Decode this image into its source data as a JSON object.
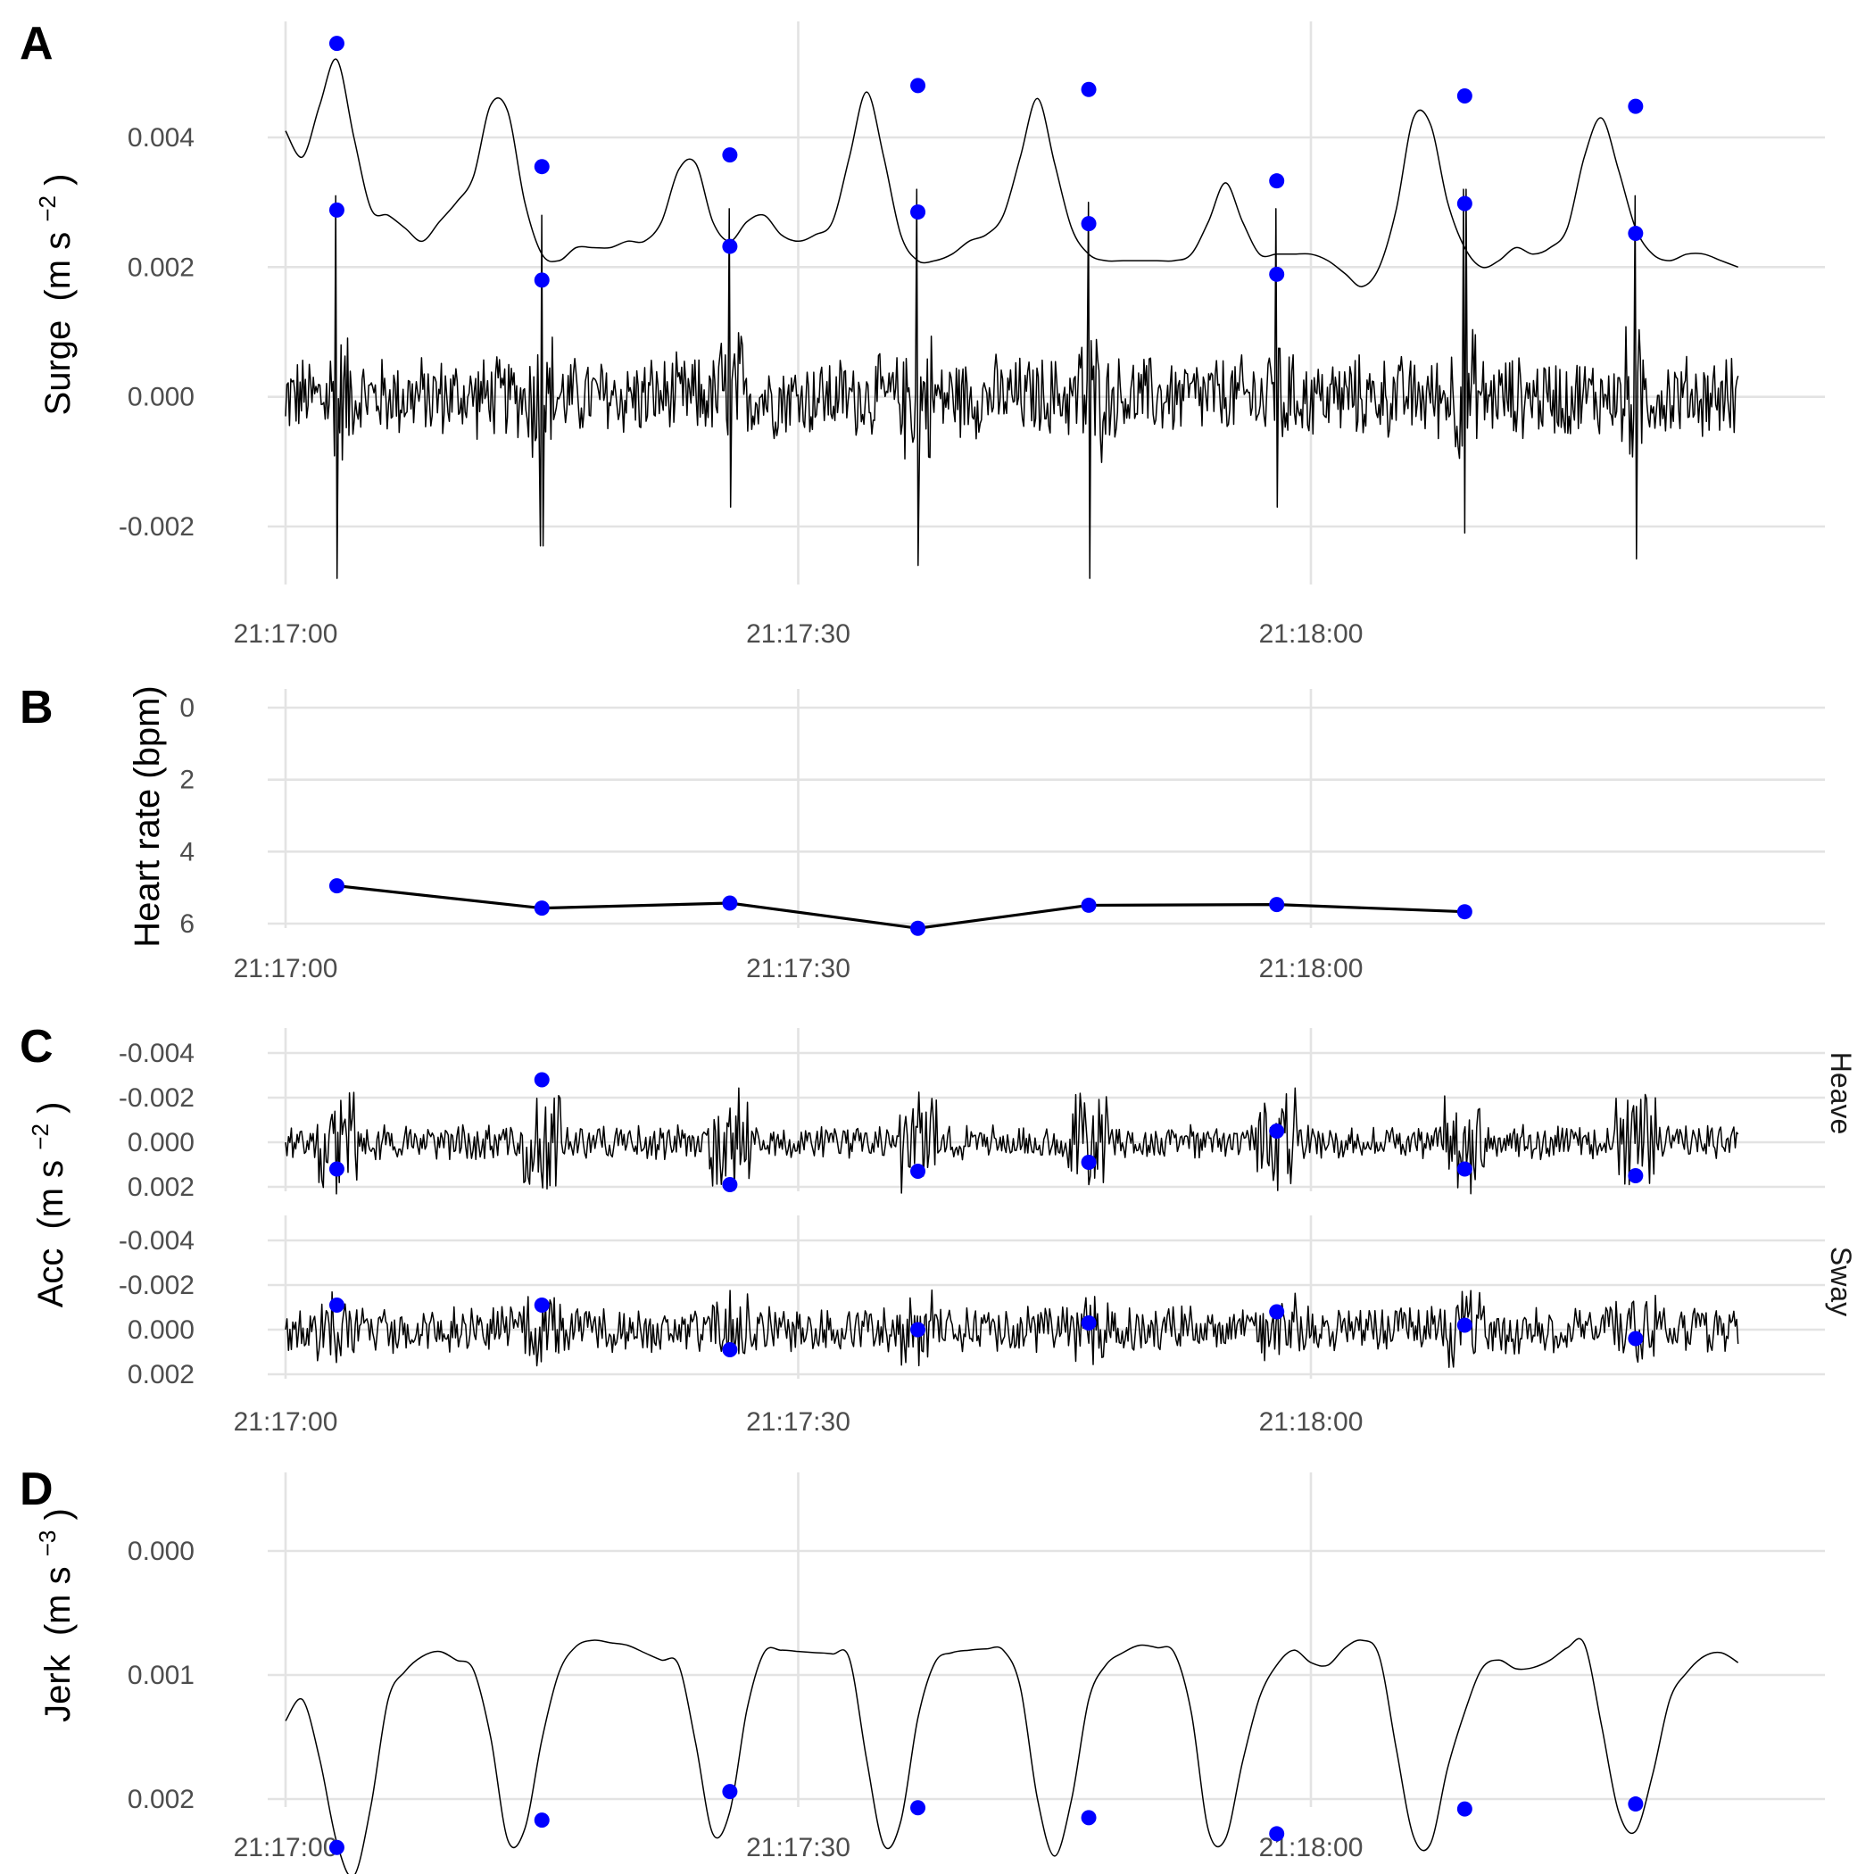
{
  "colors": {
    "marker": "#0000ff",
    "line": "#000000",
    "grid": "#e3e3e3",
    "tick_text": "#4d4d4d"
  },
  "chart_data": [
    {
      "panel": "A",
      "type": "line",
      "ylabel": "Surge",
      "ylabel_unit": "(m s",
      "ylabel_exp": "−2",
      "x_ticks": [
        "21:17:00",
        "21:17:30",
        "21:18:00"
      ],
      "x_range_seconds": [
        0,
        85
      ],
      "y_ticks": [
        "-0.002",
        "0.000",
        "0.002",
        "0.004"
      ],
      "ylim": [
        -0.0028,
        0.0055
      ],
      "series": [
        {
          "style": "envelope, dashed around detected beats",
          "x": [
            0,
            1,
            2,
            3,
            4,
            5,
            6,
            7,
            8,
            9,
            10,
            11,
            12,
            13,
            14,
            15,
            16,
            17,
            18,
            19,
            20,
            21,
            22,
            23,
            24,
            25,
            26,
            27,
            28,
            29,
            30,
            31,
            32,
            33,
            34,
            35,
            36,
            37,
            38,
            39,
            40,
            41,
            42,
            43,
            44,
            45,
            46,
            47,
            48,
            49,
            50,
            51,
            52,
            53,
            54,
            55,
            56,
            57,
            58,
            59,
            60,
            61,
            62,
            63,
            64,
            65,
            66,
            67,
            68,
            69,
            70,
            71,
            72,
            73,
            74,
            75,
            76,
            77,
            78,
            79,
            80,
            81,
            82,
            83,
            84,
            85
          ],
          "y": [
            0.0041,
            0.0037,
            0.0045,
            0.0052,
            0.004,
            0.0029,
            0.0028,
            0.0026,
            0.0024,
            0.0027,
            0.003,
            0.0034,
            0.0045,
            0.0044,
            0.003,
            0.0022,
            0.0021,
            0.0023,
            0.0023,
            0.0023,
            0.0024,
            0.0024,
            0.0027,
            0.0035,
            0.0036,
            0.0027,
            0.0024,
            0.0027,
            0.0028,
            0.0025,
            0.0024,
            0.0025,
            0.0027,
            0.0037,
            0.0047,
            0.0037,
            0.0025,
            0.0021,
            0.0021,
            0.0022,
            0.0024,
            0.0025,
            0.0028,
            0.0037,
            0.0046,
            0.0036,
            0.0026,
            0.0022,
            0.0021,
            0.0021,
            0.0021,
            0.0021,
            0.0021,
            0.0022,
            0.0027,
            0.0033,
            0.0027,
            0.0022,
            0.0022,
            0.0022,
            0.0022,
            0.0021,
            0.0019,
            0.0017,
            0.002,
            0.0029,
            0.0043,
            0.0042,
            0.003,
            0.0023,
            0.002,
            0.0021,
            0.0023,
            0.0022,
            0.0023,
            0.0026,
            0.0037,
            0.0043,
            0.0035,
            0.0026,
            0.0022,
            0.0021,
            0.0022,
            0.0022,
            0.0021,
            0.002
          ]
        }
      ],
      "beat_marker_times": [
        3,
        15,
        26,
        37,
        47,
        58,
        69,
        79
      ],
      "beat_marker_envelope": [
        0.00545,
        0.00355,
        0.00373,
        0.0048,
        0.00474,
        0.00333,
        0.00464,
        0.00448
      ],
      "beat_marker_raw": [
        0.00288,
        0.0018,
        0.00232,
        0.00285,
        0.00267,
        0.00189,
        0.00298,
        0.00252
      ],
      "raw_trace": {
        "description": "high-frequency surge acceleration, baseline ±0.0008, large spikes at each beat",
        "noise_amplitude": 0.0006,
        "beat_spikes_up": [
          0.0031,
          0.0028,
          0.0029,
          0.0032,
          0.003,
          0.0029,
          0.0032,
          0.0031
        ],
        "beat_spikes_down": [
          -0.0028,
          -0.0023,
          -0.0017,
          -0.0026,
          -0.0028,
          -0.0017,
          -0.0021,
          -0.0025
        ]
      }
    },
    {
      "panel": "B",
      "type": "line",
      "ylabel": "Heart rate (bpm)",
      "x_ticks": [
        "21:17:00",
        "21:17:30",
        "21:18:00"
      ],
      "y_ticks": [
        "0",
        "2",
        "4",
        "6"
      ],
      "ylim": [
        0,
        6.5
      ],
      "x": [
        3,
        15,
        26,
        37,
        47,
        58,
        69
      ],
      "y": [
        4.95,
        5.57,
        5.43,
        6.13,
        5.49,
        5.47,
        5.67
      ]
    },
    {
      "panel": "C",
      "type": "line",
      "ylabel": "Acc",
      "ylabel_unit": "(m s",
      "ylabel_exp": "−2",
      "x_ticks": [
        "21:17:00",
        "21:17:30",
        "21:18:00"
      ],
      "y_ticks": [
        "-0.004",
        "-0.002",
        "0.000",
        "0.002"
      ],
      "ylim": [
        -0.004,
        0.003
      ],
      "facets": [
        {
          "label": "Heave",
          "marker_times": [
            3,
            15,
            26,
            37,
            47,
            58,
            69,
            79
          ],
          "marker_values": [
            0.0012,
            -0.0028,
            0.0019,
            0.0013,
            0.0009,
            -0.0005,
            0.0012,
            0.0015
          ],
          "noise_amplitude": 0.0008,
          "burst_amplitude": 0.0025
        },
        {
          "label": "Sway",
          "marker_times": [
            3,
            15,
            26,
            37,
            47,
            58,
            69,
            79
          ],
          "marker_values": [
            -0.0011,
            -0.0011,
            0.0009,
            0.0,
            -0.0003,
            -0.0008,
            -0.0002,
            0.0004
          ],
          "noise_amplitude": 0.0011,
          "burst_amplitude": 0.0018
        }
      ]
    },
    {
      "panel": "D",
      "type": "line",
      "ylabel": "Jerk",
      "ylabel_unit": "(m s",
      "ylabel_exp": "−3",
      "x_ticks": [
        "21:17:00",
        "21:17:30",
        "21:18:00"
      ],
      "y_ticks": [
        "0.000",
        "0.001",
        "0.002"
      ],
      "ylim": [
        0,
        0.0026
      ],
      "x": [
        0,
        1,
        2,
        3,
        4,
        5,
        6,
        7,
        8,
        9,
        10,
        11,
        12,
        13,
        14,
        15,
        16,
        17,
        18,
        19,
        20,
        21,
        22,
        23,
        24,
        25,
        26,
        27,
        28,
        29,
        30,
        31,
        32,
        33,
        34,
        35,
        36,
        37,
        38,
        39,
        40,
        41,
        42,
        43,
        44,
        45,
        46,
        47,
        48,
        49,
        50,
        51,
        52,
        53,
        54,
        55,
        56,
        57,
        58,
        59,
        60,
        61,
        62,
        63,
        64,
        65,
        66,
        67,
        68,
        69,
        70,
        71,
        72,
        73,
        74,
        75,
        76,
        77,
        78,
        79,
        80,
        81,
        82,
        83,
        84,
        85
      ],
      "y": [
        0.00137,
        0.0012,
        0.00168,
        0.00235,
        0.00262,
        0.00205,
        0.0012,
        0.00097,
        0.00085,
        0.00081,
        0.00088,
        0.00096,
        0.0015,
        0.00233,
        0.00224,
        0.00152,
        0.00098,
        0.00077,
        0.00072,
        0.00074,
        0.00076,
        0.00082,
        0.00088,
        0.00092,
        0.00155,
        0.00228,
        0.0021,
        0.00128,
        0.00082,
        0.0008,
        0.00081,
        0.00082,
        0.00083,
        0.00087,
        0.00168,
        0.00237,
        0.00218,
        0.00135,
        0.0009,
        0.00082,
        0.0008,
        0.00079,
        0.0008,
        0.0011,
        0.002,
        0.00246,
        0.002,
        0.0012,
        0.00092,
        0.00082,
        0.00076,
        0.00078,
        0.00082,
        0.0013,
        0.00225,
        0.00232,
        0.0017,
        0.00118,
        0.00092,
        0.0008,
        0.0009,
        0.00092,
        0.00078,
        0.00072,
        0.00085,
        0.0016,
        0.0023,
        0.00236,
        0.00175,
        0.0013,
        0.00095,
        0.00088,
        0.00095,
        0.00094,
        0.00088,
        0.00078,
        0.00075,
        0.0014,
        0.0021,
        0.00226,
        0.0018,
        0.0012,
        0.00098,
        0.00085,
        0.00082,
        0.0009
      ],
      "marker_times": [
        3,
        15,
        26,
        37,
        47,
        58,
        69,
        79
      ],
      "marker_values": [
        0.00239,
        0.00217,
        0.00194,
        0.00207,
        0.00215,
        0.00228,
        0.00208,
        0.00204
      ]
    }
  ]
}
